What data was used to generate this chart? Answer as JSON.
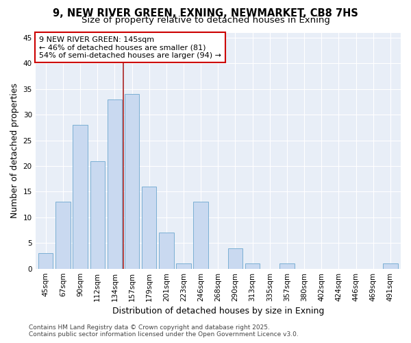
{
  "title1": "9, NEW RIVER GREEN, EXNING, NEWMARKET, CB8 7HS",
  "title2": "Size of property relative to detached houses in Exning",
  "xlabel": "Distribution of detached houses by size in Exning",
  "ylabel": "Number of detached properties",
  "categories": [
    "45sqm",
    "67sqm",
    "90sqm",
    "112sqm",
    "134sqm",
    "157sqm",
    "179sqm",
    "201sqm",
    "223sqm",
    "246sqm",
    "268sqm",
    "290sqm",
    "313sqm",
    "335sqm",
    "357sqm",
    "380sqm",
    "402sqm",
    "424sqm",
    "446sqm",
    "469sqm",
    "491sqm"
  ],
  "values": [
    3,
    13,
    28,
    21,
    33,
    34,
    16,
    7,
    1,
    13,
    0,
    4,
    1,
    0,
    1,
    0,
    0,
    0,
    0,
    0,
    1
  ],
  "bar_color": "#c9d9f0",
  "bar_edge_color": "#7bafd4",
  "vline_x": 4.5,
  "vline_color": "#aa2222",
  "annotation_title": "9 NEW RIVER GREEN: 145sqm",
  "annotation_line2": "← 46% of detached houses are smaller (81)",
  "annotation_line3": "54% of semi-detached houses are larger (94) →",
  "annotation_box_color": "#ffffff",
  "annotation_box_edge": "#cc0000",
  "ylim": [
    0,
    46
  ],
  "yticks": [
    0,
    5,
    10,
    15,
    20,
    25,
    30,
    35,
    40,
    45
  ],
  "fig_bg_color": "#ffffff",
  "plot_bg_color": "#e8eef7",
  "grid_color": "#ffffff",
  "footer1": "Contains HM Land Registry data © Crown copyright and database right 2025.",
  "footer2": "Contains public sector information licensed under the Open Government Licence v3.0.",
  "title_fontsize": 10.5,
  "subtitle_fontsize": 9.5,
  "axis_label_fontsize": 9,
  "tick_fontsize": 7.5,
  "annotation_fontsize": 8,
  "footer_fontsize": 6.5
}
